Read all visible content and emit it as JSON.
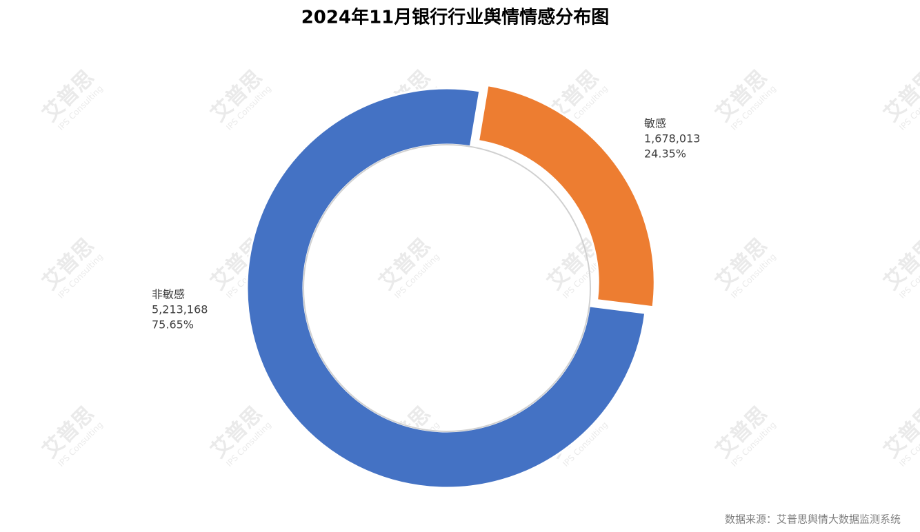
{
  "chart_data": {
    "type": "donut",
    "title": "2024年11月银行行业舆情情感分布图",
    "categories": [
      "敏感",
      "非敏感"
    ],
    "values": [
      1678013,
      5213168
    ],
    "value_labels": [
      "1,678,013",
      "5,213,168"
    ],
    "percentages": [
      24.35,
      75.65
    ],
    "percentage_labels": [
      "24.35%",
      "75.65%"
    ],
    "colors": [
      "#ed7d31",
      "#4472c4"
    ],
    "source": "数据来源：艾普思舆情大数据监测系统",
    "watermark": [
      "艾普思",
      "IPS Consulting"
    ]
  }
}
